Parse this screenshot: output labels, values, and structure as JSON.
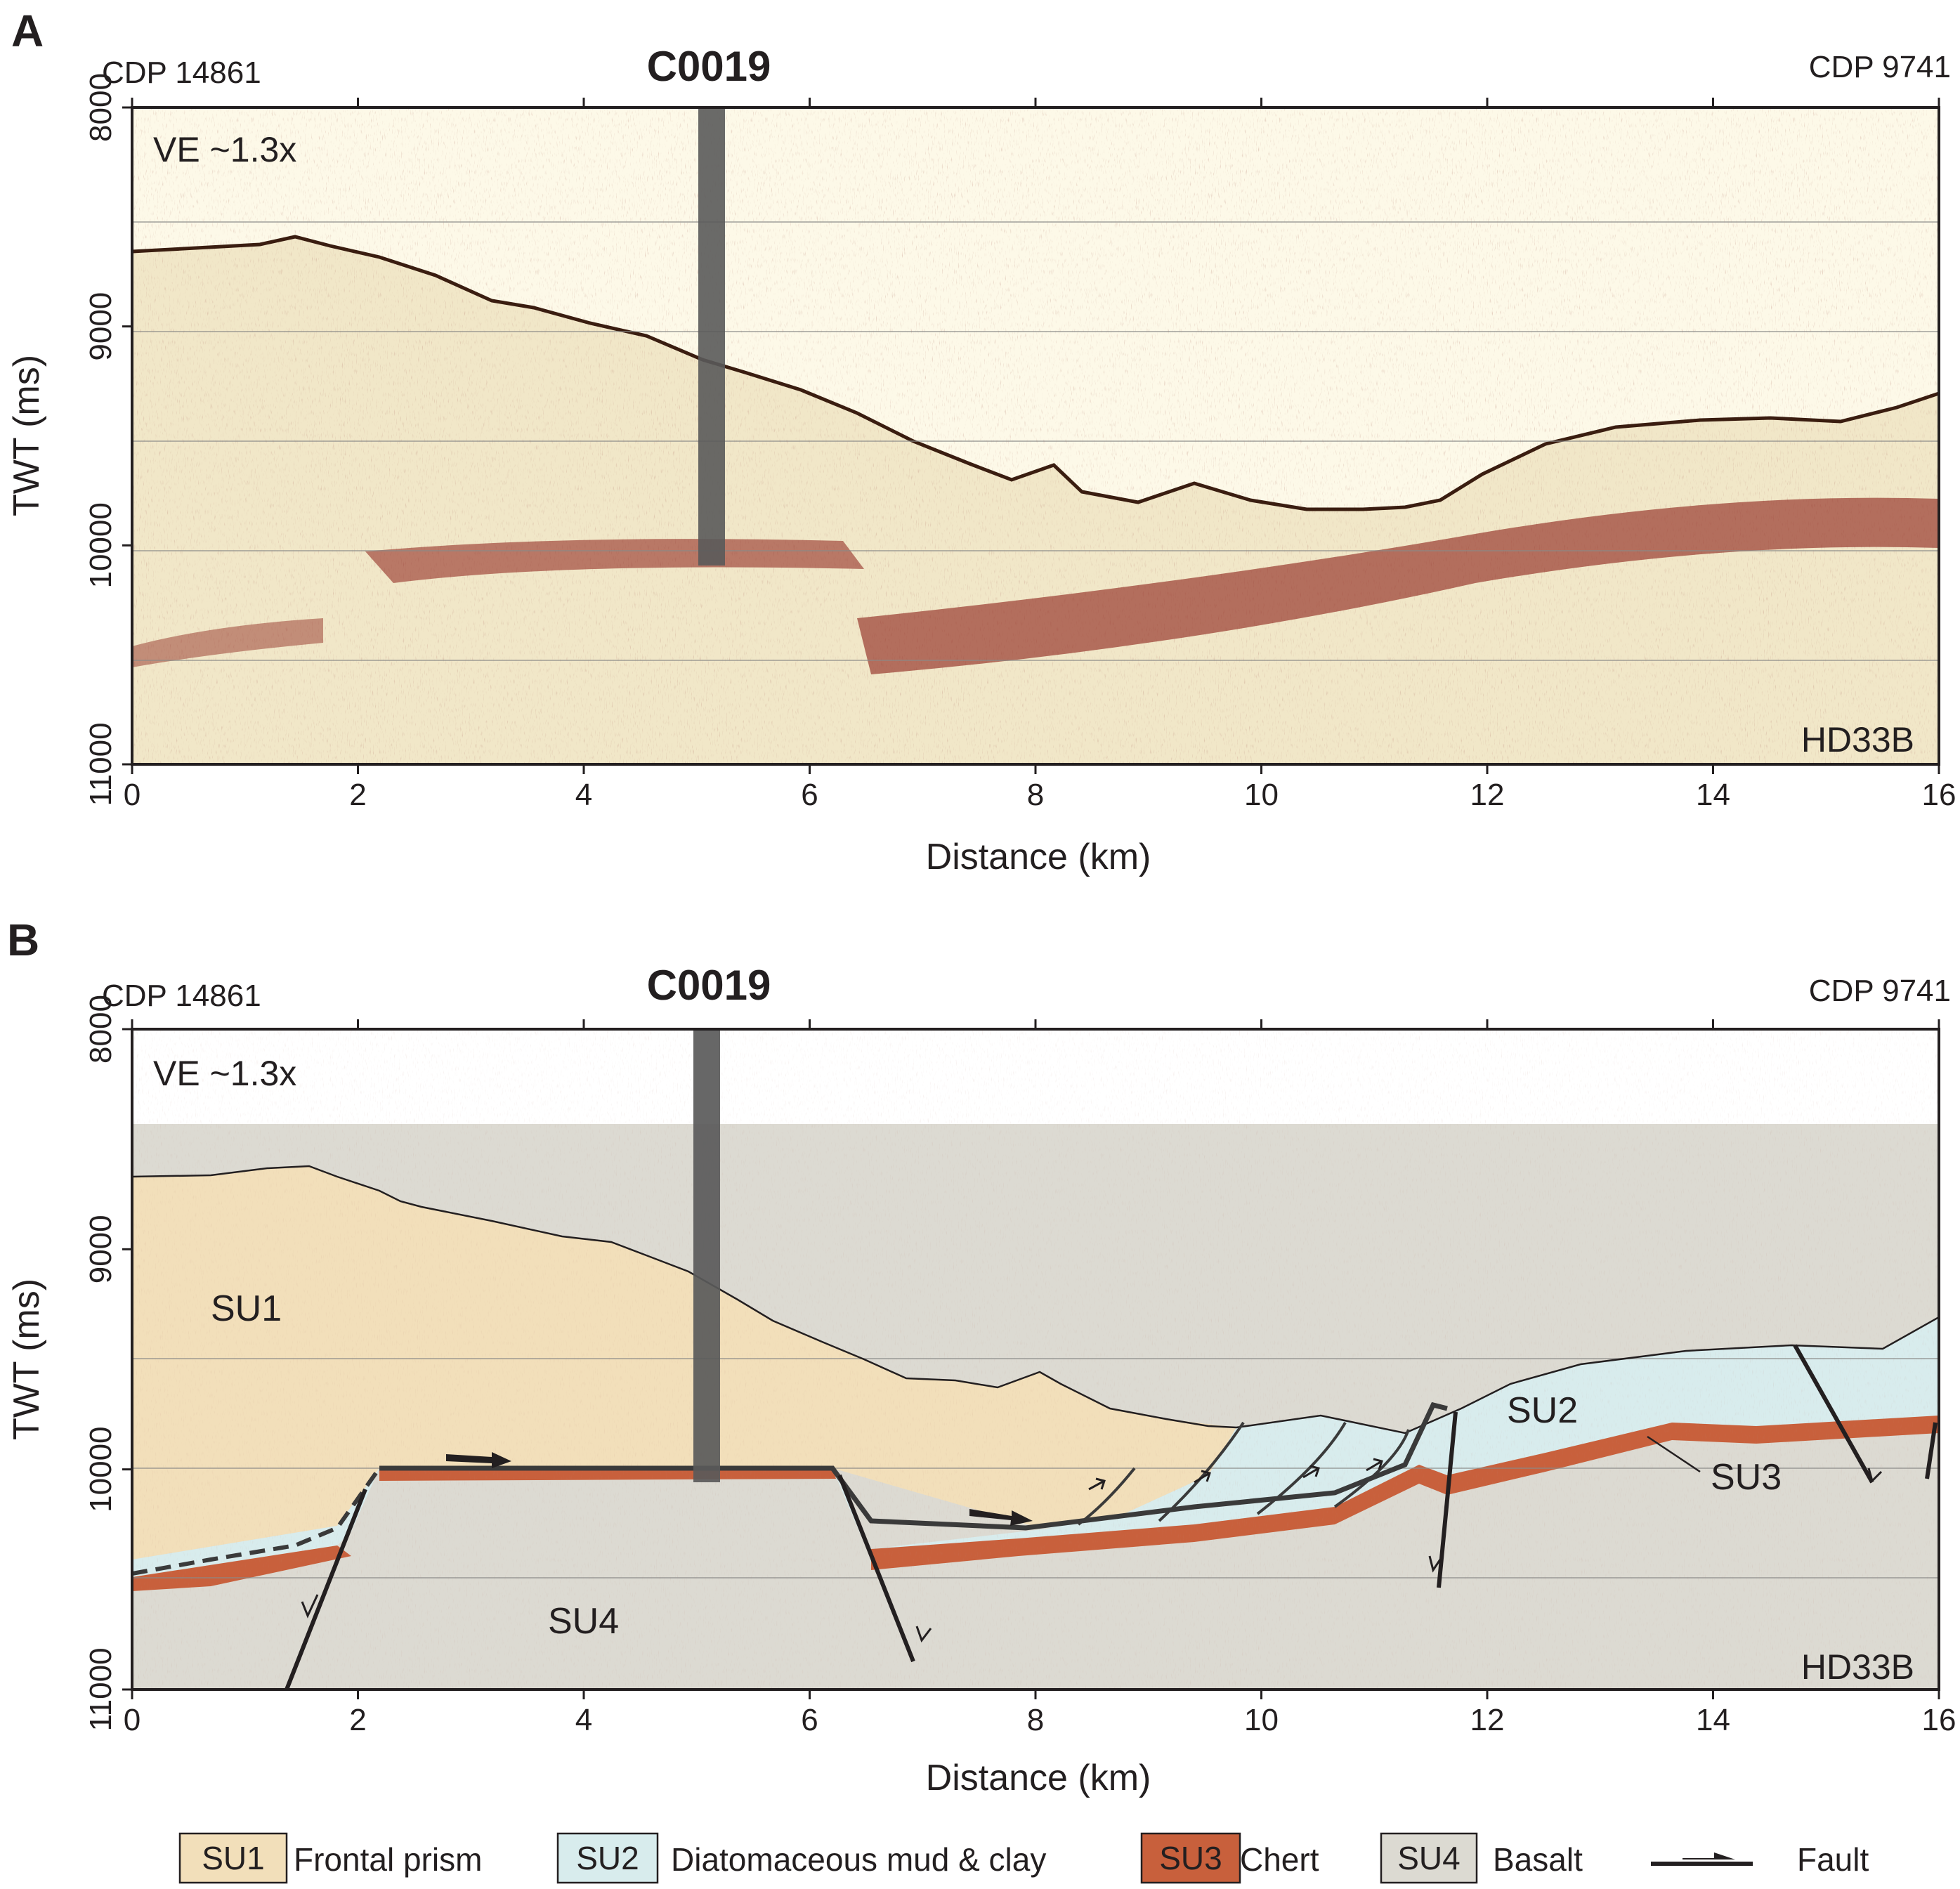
{
  "colors": {
    "su1": "#f2dfba",
    "su2": "#d8eced",
    "su3": "#c8603c",
    "su4": "#dcdad2",
    "sea": "#fdf9e8",
    "reflector": "#8a1e16",
    "fault": "#2b2b2b",
    "borehole": "#5a5a5a"
  },
  "panel_a": {
    "letter": "A",
    "cdp_left": "CDP 14861",
    "cdp_right": "CDP 9741",
    "site": "C0019",
    "ve": "VE ~1.3x",
    "line": "HD33B",
    "xlabel": "Distance (km)",
    "ylabel": "TWT (ms)",
    "xticks": [
      "0",
      "2",
      "4",
      "6",
      "8",
      "10",
      "12",
      "14",
      "16"
    ],
    "yticks": [
      "8000",
      "9000",
      "10000",
      "11000"
    ]
  },
  "panel_b": {
    "letter": "B",
    "cdp_left": "CDP 14861",
    "cdp_right": "CDP 9741",
    "site": "C0019",
    "ve": "VE ~1.3x",
    "line": "HD33B",
    "xlabel": "Distance (km)",
    "ylabel": "TWT (ms)",
    "xticks": [
      "0",
      "2",
      "4",
      "6",
      "8",
      "10",
      "12",
      "14",
      "16"
    ],
    "yticks": [
      "8000",
      "9000",
      "10000",
      "11000"
    ],
    "labels": {
      "su1": "SU1",
      "su2": "SU2",
      "su3": "SU3",
      "su4": "SU4"
    }
  },
  "legend": [
    {
      "code": "SU1",
      "text": "Frontal prism"
    },
    {
      "code": "SU2",
      "text": "Diatomaceous mud & clay"
    },
    {
      "code": "SU3",
      "text": "Chert"
    },
    {
      "code": "SU4",
      "text": "Basalt"
    },
    {
      "code": "",
      "text": "Fault"
    }
  ],
  "chart_data": {
    "type": "cross-section",
    "x_range_km": [
      0,
      16
    ],
    "y_range_ms": [
      8000,
      11000
    ],
    "borehole": {
      "name": "C0019",
      "distance_km": 5.1,
      "bottom_twt_ms": 10050
    },
    "seafloor": [
      {
        "km": 0,
        "ms": 8640
      },
      {
        "km": 1.0,
        "ms": 8610
      },
      {
        "km": 1.5,
        "ms": 8590
      },
      {
        "km": 2.0,
        "ms": 8680
      },
      {
        "km": 2.5,
        "ms": 8710
      },
      {
        "km": 3.0,
        "ms": 8820
      },
      {
        "km": 3.5,
        "ms": 8880
      },
      {
        "km": 4.0,
        "ms": 8860
      },
      {
        "km": 4.5,
        "ms": 8920
      },
      {
        "km": 5.0,
        "ms": 9080
      },
      {
        "km": 5.5,
        "ms": 9190
      },
      {
        "km": 6.0,
        "ms": 9300
      },
      {
        "km": 6.5,
        "ms": 9380
      },
      {
        "km": 7.0,
        "ms": 9480
      },
      {
        "km": 7.5,
        "ms": 9610
      },
      {
        "km": 8.0,
        "ms": 9640
      },
      {
        "km": 8.3,
        "ms": 9740
      },
      {
        "km": 9.0,
        "ms": 9700
      },
      {
        "km": 9.5,
        "ms": 9700
      },
      {
        "km": 10.0,
        "ms": 9720
      },
      {
        "km": 10.7,
        "ms": 9780
      },
      {
        "km": 11.2,
        "ms": 9810
      },
      {
        "km": 11.6,
        "ms": 9760
      },
      {
        "km": 12.2,
        "ms": 9620
      },
      {
        "km": 13.0,
        "ms": 9550
      },
      {
        "km": 14.0,
        "ms": 9530
      },
      {
        "km": 15.0,
        "ms": 9510
      },
      {
        "km": 16.0,
        "ms": 9400
      }
    ],
    "units": [
      {
        "code": "SU1",
        "lithology": "Frontal prism"
      },
      {
        "code": "SU2",
        "lithology": "Diatomaceous mud & clay"
      },
      {
        "code": "SU3",
        "lithology": "Chert"
      },
      {
        "code": "SU4",
        "lithology": "Basalt"
      }
    ]
  }
}
